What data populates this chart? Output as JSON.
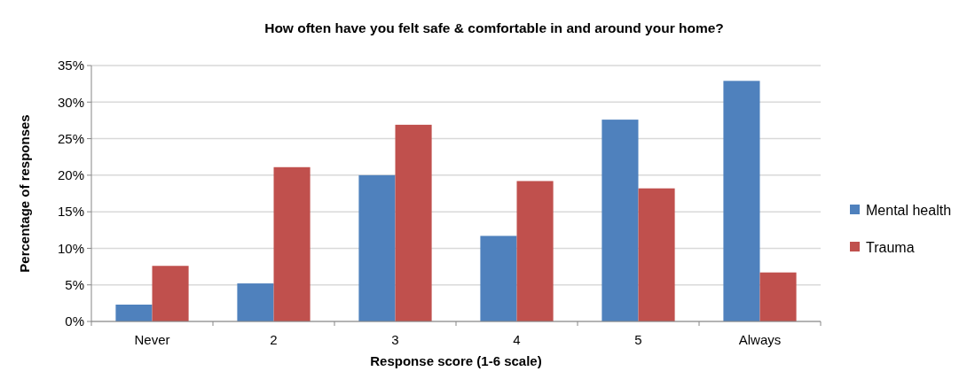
{
  "chart_data": {
    "type": "bar",
    "title": "How often have you felt safe & comfortable in and around your home?",
    "xlabel": "Response score (1-6 scale)",
    "ylabel": "Percentage of responses",
    "categories": [
      "Never",
      "2",
      "3",
      "4",
      "5",
      "Always"
    ],
    "series": [
      {
        "name": "Mental health",
        "color": "#4f81bd",
        "values": [
          2.3,
          5.2,
          20.0,
          11.7,
          27.6,
          32.9
        ]
      },
      {
        "name": "Trauma",
        "color": "#c0504d",
        "values": [
          7.6,
          21.1,
          26.9,
          19.2,
          18.2,
          6.7
        ]
      }
    ],
    "ylim": [
      0,
      35
    ],
    "yticks": [
      {
        "value": 0,
        "label": "0%"
      },
      {
        "value": 5,
        "label": "5%"
      },
      {
        "value": 10,
        "label": "10%"
      },
      {
        "value": 15,
        "label": "15%"
      },
      {
        "value": 20,
        "label": "20%"
      },
      {
        "value": 25,
        "label": "25%"
      },
      {
        "value": 30,
        "label": "30%"
      },
      {
        "value": 35,
        "label": "35%"
      }
    ],
    "grid": "y",
    "legend": "right"
  }
}
